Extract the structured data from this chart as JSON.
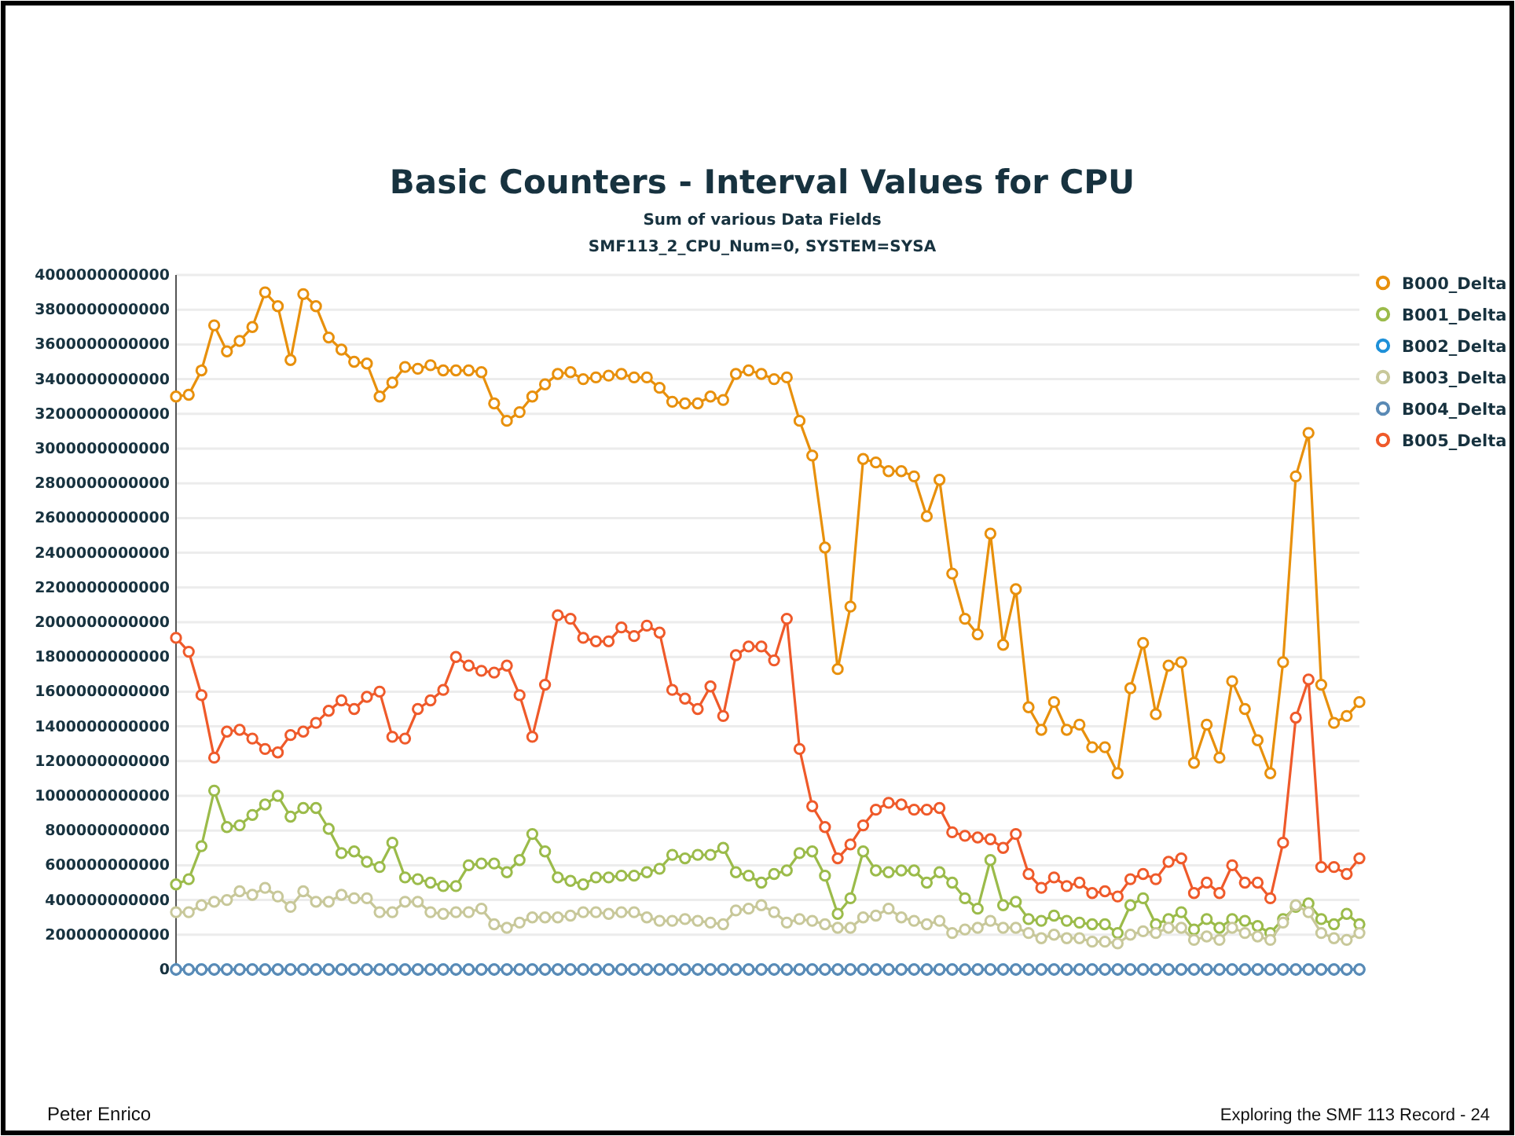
{
  "chart_data": {
    "type": "line",
    "title": "Basic Counters - Interval Values for CPU",
    "subtitle": "Sum of various Data Fields\nSMF113_2_CPU_Num=0, SYSTEM=SYSA",
    "categories": [
      null,
      null,
      null,
      null,
      null,
      null,
      null,
      null,
      null,
      null,
      null,
      null,
      null,
      null,
      null,
      null,
      null,
      null,
      null,
      null,
      null,
      null,
      null,
      null,
      null,
      null,
      null,
      null,
      null,
      null,
      null,
      null,
      null,
      null,
      null,
      null,
      null,
      null,
      null,
      null,
      null,
      null,
      null,
      null,
      null,
      null,
      null,
      null,
      null,
      null,
      null,
      null,
      null,
      null,
      null,
      null,
      null,
      null,
      null,
      null,
      null,
      null,
      null,
      null,
      null,
      null,
      null,
      null,
      null,
      null,
      null,
      null,
      null,
      null,
      null,
      null,
      null,
      null,
      null,
      null,
      null,
      null,
      null,
      null,
      null,
      null,
      null,
      null,
      null,
      null,
      null,
      null,
      null,
      null
    ],
    "series": [
      {
        "name": "B000_Delta",
        "color": "#e8900c",
        "values": [
          3300000000000.0,
          3310000000000.0,
          3450000000000.0,
          3710000000000.0,
          3560000000000.0,
          3620000000000.0,
          3700000000000.0,
          3900000000000.0,
          3820000000000.0,
          3510000000000.0,
          3890000000000.0,
          3820000000000.0,
          3640000000000.0,
          3570000000000.0,
          3500000000000.0,
          3490000000000.0,
          3300000000000.0,
          3380000000000.0,
          3470000000000.0,
          3460000000000.0,
          3480000000000.0,
          3450000000000.0,
          3450000000000.0,
          3450000000000.0,
          3440000000000.0,
          3260000000000.0,
          3160000000000.0,
          3210000000000.0,
          3300000000000.0,
          3370000000000.0,
          3430000000000.0,
          3440000000000.0,
          3400000000000.0,
          3410000000000.0,
          3420000000000.0,
          3430000000000.0,
          3410000000000.0,
          3410000000000.0,
          3350000000000.0,
          3270000000000.0,
          3260000000000.0,
          3260000000000.0,
          3300000000000.0,
          3280000000000.0,
          3430000000000.0,
          3450000000000.0,
          3430000000000.0,
          3400000000000.0,
          3410000000000.0,
          3160000000000.0,
          2960000000000.0,
          2430000000000.0,
          1730000000000.0,
          2090000000000.0,
          2940000000000.0,
          2920000000000.0,
          2870000000000.0,
          2870000000000.0,
          2840000000000.0,
          2610000000000.0,
          2820000000000.0,
          2280000000000.0,
          2020000000000.0,
          1930000000000.0,
          2510000000000.0,
          1870000000000.0,
          2190000000000.0,
          1510000000000.0,
          1380000000000.0,
          1540000000000.0,
          1380000000000.0,
          1410000000000.0,
          1280000000000.0,
          1280000000000.0,
          1130000000000.0,
          1620000000000.0,
          1880000000000.0,
          1470000000000.0,
          1750000000000.0,
          1770000000000.0,
          1190000000000.0,
          1410000000000.0,
          1220000000000.0,
          1660000000000.0,
          1500000000000.0,
          1320000000000.0,
          1130000000000.0,
          1770000000000.0,
          2840000000000.0,
          3090000000000.0,
          1640000000000.0,
          1420000000000.0,
          1460000000000.0,
          1540000000000.0
        ]
      },
      {
        "name": "B001_Delta",
        "color": "#9bbb4a",
        "values": [
          490000000000.0,
          520000000000.0,
          710000000000.0,
          1030000000000.0,
          820000000000.0,
          830000000000.0,
          890000000000.0,
          950000000000.0,
          1000000000000.0,
          880000000000.0,
          930000000000.0,
          930000000000.0,
          810000000000.0,
          670000000000.0,
          680000000000.0,
          620000000000.0,
          590000000000.0,
          730000000000.0,
          530000000000.0,
          520000000000.0,
          500000000000.0,
          480000000000.0,
          480000000000.0,
          600000000000.0,
          610000000000.0,
          610000000000.0,
          560000000000.0,
          630000000000.0,
          780000000000.0,
          680000000000.0,
          530000000000.0,
          510000000000.0,
          490000000000.0,
          530000000000.0,
          530000000000.0,
          540000000000.0,
          540000000000.0,
          560000000000.0,
          580000000000.0,
          660000000000.0,
          640000000000.0,
          660000000000.0,
          660000000000.0,
          700000000000.0,
          560000000000.0,
          540000000000.0,
          500000000000.0,
          550000000000.0,
          570000000000.0,
          670000000000.0,
          680000000000.0,
          540000000000.0,
          320000000000.0,
          410000000000.0,
          680000000000.0,
          570000000000.0,
          560000000000.0,
          570000000000.0,
          570000000000.0,
          500000000000.0,
          560000000000.0,
          500000000000.0,
          410000000000.0,
          350000000000.0,
          630000000000.0,
          370000000000.0,
          390000000000.0,
          290000000000.0,
          280000000000.0,
          310000000000.0,
          280000000000.0,
          270000000000.0,
          260000000000.0,
          260000000000.0,
          210000000000.0,
          370000000000.0,
          410000000000.0,
          260000000000.0,
          290000000000.0,
          330000000000.0,
          230000000000.0,
          290000000000.0,
          240000000000.0,
          290000000000.0,
          280000000000.0,
          250000000000.0,
          210000000000.0,
          290000000000.0,
          360000000000.0,
          380000000000.0,
          290000000000.0,
          260000000000.0,
          320000000000.0,
          260000000000.0
        ]
      },
      {
        "name": "B002_Delta",
        "color": "#1e90d8",
        "values": [
          0,
          0,
          0,
          0,
          0,
          0,
          0,
          0,
          0,
          0,
          0,
          0,
          0,
          0,
          0,
          0,
          0,
          0,
          0,
          0,
          0,
          0,
          0,
          0,
          0,
          0,
          0,
          0,
          0,
          0,
          0,
          0,
          0,
          0,
          0,
          0,
          0,
          0,
          0,
          0,
          0,
          0,
          0,
          0,
          0,
          0,
          0,
          0,
          0,
          0,
          0,
          0,
          0,
          0,
          0,
          0,
          0,
          0,
          0,
          0,
          0,
          0,
          0,
          0,
          0,
          0,
          0,
          0,
          0,
          0,
          0,
          0,
          0,
          0,
          0,
          0,
          0,
          0,
          0,
          0,
          0,
          0,
          0,
          0,
          0,
          0,
          0,
          0,
          0,
          0,
          0,
          0,
          0,
          0
        ]
      },
      {
        "name": "B003_Delta",
        "color": "#c8c89a",
        "values": [
          330000000000.0,
          330000000000.0,
          370000000000.0,
          390000000000.0,
          400000000000.0,
          450000000000.0,
          430000000000.0,
          470000000000.0,
          420000000000.0,
          360000000000.0,
          450000000000.0,
          390000000000.0,
          390000000000.0,
          430000000000.0,
          410000000000.0,
          410000000000.0,
          330000000000.0,
          330000000000.0,
          390000000000.0,
          390000000000.0,
          330000000000.0,
          320000000000.0,
          330000000000.0,
          330000000000.0,
          350000000000.0,
          260000000000.0,
          240000000000.0,
          270000000000.0,
          300000000000.0,
          300000000000.0,
          300000000000.0,
          310000000000.0,
          330000000000.0,
          330000000000.0,
          320000000000.0,
          330000000000.0,
          330000000000.0,
          300000000000.0,
          280000000000.0,
          280000000000.0,
          290000000000.0,
          280000000000.0,
          270000000000.0,
          260000000000.0,
          340000000000.0,
          350000000000.0,
          370000000000.0,
          330000000000.0,
          270000000000.0,
          290000000000.0,
          280000000000.0,
          260000000000.0,
          240000000000.0,
          240000000000.0,
          300000000000.0,
          310000000000.0,
          350000000000.0,
          300000000000.0,
          280000000000.0,
          260000000000.0,
          280000000000.0,
          210000000000.0,
          230000000000.0,
          240000000000.0,
          280000000000.0,
          240000000000.0,
          240000000000.0,
          210000000000.0,
          180000000000.0,
          200000000000.0,
          180000000000.0,
          180000000000.0,
          160000000000.0,
          160000000000.0,
          150000000000.0,
          200000000000.0,
          220000000000.0,
          210000000000.0,
          240000000000.0,
          240000000000.0,
          170000000000.0,
          190000000000.0,
          170000000000.0,
          240000000000.0,
          210000000000.0,
          190000000000.0,
          170000000000.0,
          270000000000.0,
          370000000000.0,
          330000000000.0,
          210000000000.0,
          180000000000.0,
          170000000000.0,
          210000000000.0
        ]
      },
      {
        "name": "B004_Delta",
        "color": "#5a8ab5",
        "values": [
          0,
          0,
          0,
          0,
          0,
          0,
          0,
          0,
          0,
          0,
          0,
          0,
          0,
          0,
          0,
          0,
          0,
          0,
          0,
          0,
          0,
          0,
          0,
          0,
          0,
          0,
          0,
          0,
          0,
          0,
          0,
          0,
          0,
          0,
          0,
          0,
          0,
          0,
          0,
          0,
          0,
          0,
          0,
          0,
          0,
          0,
          0,
          0,
          0,
          0,
          0,
          0,
          0,
          0,
          0,
          0,
          0,
          0,
          0,
          0,
          0,
          0,
          0,
          0,
          0,
          0,
          0,
          0,
          0,
          0,
          0,
          0,
          0,
          0,
          0,
          0,
          0,
          0,
          0,
          0,
          0,
          0,
          0,
          0,
          0,
          0,
          0,
          0,
          0,
          0,
          0,
          0,
          0,
          0
        ]
      },
      {
        "name": "B005_Delta",
        "color": "#ef5a2a",
        "values": [
          1910000000000.0,
          1830000000000.0,
          1580000000000.0,
          1220000000000.0,
          1370000000000.0,
          1380000000000.0,
          1330000000000.0,
          1270000000000.0,
          1250000000000.0,
          1350000000000.0,
          1370000000000.0,
          1420000000000.0,
          1490000000000.0,
          1550000000000.0,
          1500000000000.0,
          1570000000000.0,
          1600000000000.0,
          1340000000000.0,
          1330000000000.0,
          1500000000000.0,
          1550000000000.0,
          1610000000000.0,
          1800000000000.0,
          1750000000000.0,
          1720000000000.0,
          1710000000000.0,
          1750000000000.0,
          1580000000000.0,
          1340000000000.0,
          1640000000000.0,
          2040000000000.0,
          2020000000000.0,
          1910000000000.0,
          1890000000000.0,
          1890000000000.0,
          1970000000000.0,
          1920000000000.0,
          1980000000000.0,
          1940000000000.0,
          1610000000000.0,
          1560000000000.0,
          1500000000000.0,
          1630000000000.0,
          1460000000000.0,
          1810000000000.0,
          1860000000000.0,
          1860000000000.0,
          1780000000000.0,
          2020000000000.0,
          1270000000000.0,
          940000000000.0,
          820000000000.0,
          640000000000.0,
          720000000000.0,
          830000000000.0,
          920000000000.0,
          960000000000.0,
          950000000000.0,
          920000000000.0,
          920000000000.0,
          930000000000.0,
          790000000000.0,
          770000000000.0,
          760000000000.0,
          750000000000.0,
          700000000000.0,
          780000000000.0,
          550000000000.0,
          470000000000.0,
          530000000000.0,
          480000000000.0,
          500000000000.0,
          440000000000.0,
          450000000000.0,
          420000000000.0,
          520000000000.0,
          550000000000.0,
          520000000000.0,
          620000000000.0,
          640000000000.0,
          440000000000.0,
          500000000000.0,
          440000000000.0,
          600000000000.0,
          500000000000.0,
          500000000000.0,
          410000000000.0,
          730000000000.0,
          1450000000000.0,
          1670000000000.0,
          590000000000.0,
          590000000000.0,
          550000000000.0,
          640000000000.0
        ]
      }
    ],
    "ylim": [
      0,
      4000000000000
    ],
    "yticks": [
      0,
      200000000000,
      400000000000,
      600000000000,
      800000000000,
      1000000000000,
      1200000000000,
      1400000000000,
      1600000000000,
      1800000000000,
      2000000000000,
      2200000000000,
      2400000000000,
      2600000000000,
      2800000000000,
      3000000000000,
      3200000000000,
      3400000000000,
      3600000000000,
      3800000000000,
      4000000000000
    ],
    "grid": "y",
    "legend": "top right",
    "marker": "circle",
    "line_style": "solid",
    "annotations": [
      "Peter Enrico",
      "Exploring the SMF 113 Record - 24"
    ]
  }
}
